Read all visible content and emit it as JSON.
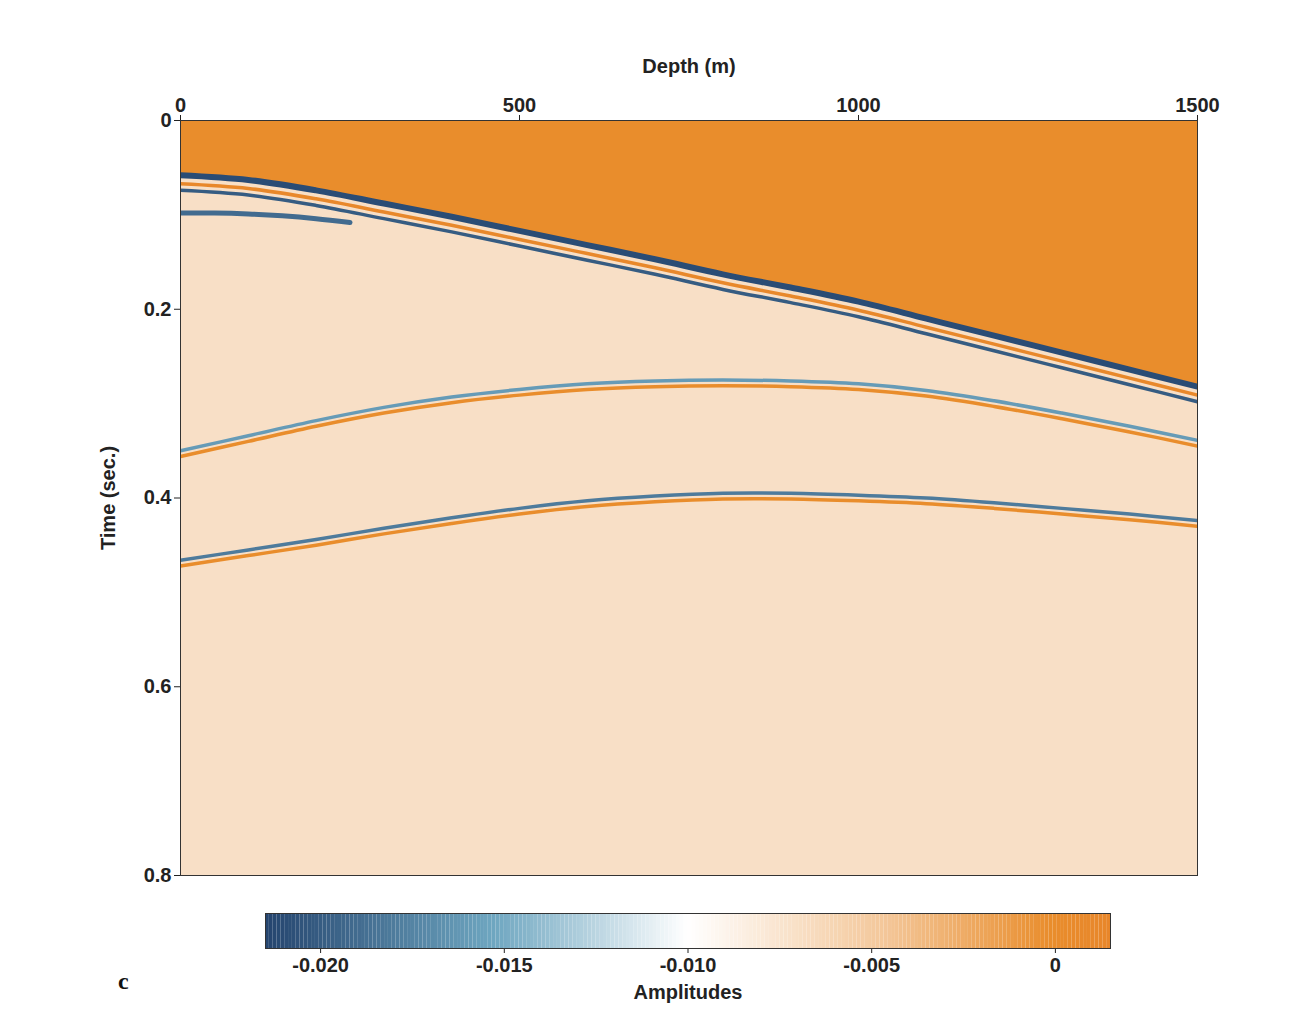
{
  "chart_data": {
    "type": "seismic",
    "panel_label": "c",
    "x_label": "Depth (m)",
    "y_label": "Time (sec.)",
    "xlim": [
      0,
      1500
    ],
    "xticks": [
      0,
      500,
      1000,
      1500
    ],
    "ylim": [
      0,
      0.8
    ],
    "yticks": [
      0,
      0.2,
      0.4,
      0.6,
      0.8
    ],
    "above_amplitude": 0,
    "below_amplitude": -0.007,
    "events": [
      {
        "x": [
          0,
          100,
          200,
          300,
          400,
          500,
          600,
          700,
          800,
          900,
          1000,
          1100,
          1200,
          1300,
          1400,
          1500
        ],
        "values": [
          0.058,
          0.063,
          0.074,
          0.088,
          0.102,
          0.117,
          0.132,
          0.147,
          0.163,
          0.177,
          0.192,
          0.21,
          0.228,
          0.246,
          0.264,
          0.282
        ],
        "amplitude": -0.021
      },
      {
        "x": [
          0,
          100,
          200,
          300,
          400,
          500,
          600,
          700,
          800,
          900,
          1000,
          1100,
          1200,
          1300,
          1400,
          1500
        ],
        "values": [
          0.067,
          0.072,
          0.083,
          0.097,
          0.111,
          0.126,
          0.141,
          0.156,
          0.172,
          0.186,
          0.201,
          0.219,
          0.237,
          0.255,
          0.273,
          0.291
        ],
        "amplitude": 0.001
      },
      {
        "x": [
          0,
          100,
          200,
          300,
          400,
          500,
          600,
          700,
          800,
          900,
          1000,
          1100,
          1200,
          1300,
          1400,
          1500
        ],
        "values": [
          0.074,
          0.079,
          0.09,
          0.104,
          0.118,
          0.133,
          0.148,
          0.163,
          0.179,
          0.193,
          0.208,
          0.226,
          0.244,
          0.262,
          0.28,
          0.298
        ],
        "amplitude": -0.02
      },
      {
        "x": [
          0,
          50,
          100,
          150,
          200,
          250
        ],
        "values": [
          0.098,
          0.098,
          0.099,
          0.101,
          0.104,
          0.108
        ],
        "amplitude": -0.019
      },
      {
        "x": [
          0,
          100,
          200,
          300,
          400,
          500,
          600,
          700,
          800,
          900,
          1000,
          1100,
          1200,
          1300,
          1400,
          1500
        ],
        "values": [
          0.35,
          0.334,
          0.318,
          0.304,
          0.293,
          0.285,
          0.279,
          0.276,
          0.275,
          0.276,
          0.279,
          0.286,
          0.297,
          0.31,
          0.324,
          0.339
        ],
        "amplitude": -0.016
      },
      {
        "x": [
          0,
          100,
          200,
          300,
          400,
          500,
          600,
          700,
          800,
          900,
          1000,
          1100,
          1200,
          1300,
          1400,
          1500
        ],
        "values": [
          0.356,
          0.34,
          0.324,
          0.31,
          0.299,
          0.291,
          0.285,
          0.282,
          0.281,
          0.282,
          0.285,
          0.292,
          0.303,
          0.316,
          0.33,
          0.345
        ],
        "amplitude": 0
      },
      {
        "x": [
          0,
          100,
          200,
          300,
          400,
          500,
          600,
          700,
          800,
          900,
          1000,
          1100,
          1200,
          1300,
          1400,
          1500
        ],
        "values": [
          0.466,
          0.455,
          0.444,
          0.432,
          0.421,
          0.411,
          0.403,
          0.398,
          0.395,
          0.395,
          0.397,
          0.4,
          0.405,
          0.411,
          0.417,
          0.424
        ],
        "amplitude": -0.018
      },
      {
        "x": [
          0,
          100,
          200,
          300,
          400,
          500,
          600,
          700,
          800,
          900,
          1000,
          1100,
          1200,
          1300,
          1400,
          1500
        ],
        "values": [
          0.472,
          0.461,
          0.45,
          0.438,
          0.427,
          0.417,
          0.409,
          0.404,
          0.401,
          0.401,
          0.403,
          0.406,
          0.411,
          0.417,
          0.423,
          0.43
        ],
        "amplitude": 0
      }
    ],
    "colorbar": {
      "label": "Amplitudes",
      "range": [
        -0.0215,
        0.0015
      ],
      "ticks": [
        {
          "value": -0.02,
          "label": "-0.020"
        },
        {
          "value": -0.015,
          "label": "-0.015"
        },
        {
          "value": -0.01,
          "label": "-0.010"
        },
        {
          "value": -0.005,
          "label": "-0.005"
        },
        0
      ]
    }
  }
}
